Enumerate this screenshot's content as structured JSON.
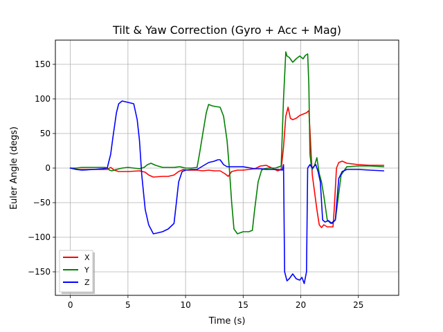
{
  "chart_data": {
    "type": "line",
    "title": "Tilt & Yaw Correction (Gyro + Acc + Mag)",
    "xlabel": "Time (s)",
    "ylabel": "Euler Angle (degs)",
    "xlim": [
      -1.3,
      28.5
    ],
    "ylim": [
      -184,
      185
    ],
    "xticks": [
      0,
      5,
      10,
      15,
      20,
      25
    ],
    "yticks": [
      -150,
      -100,
      -50,
      0,
      50,
      100,
      150
    ],
    "grid": true,
    "legend_position": "lower-left",
    "series": [
      {
        "name": "X",
        "color": "#ff0000",
        "x": [
          0,
          0.7,
          2.5,
          3.2,
          3.5,
          3.8,
          4.2,
          5.0,
          6.0,
          6.5,
          6.8,
          7.2,
          8.0,
          8.5,
          9.0,
          9.4,
          9.8,
          10.2,
          11.0,
          11.5,
          12.0,
          12.5,
          13.0,
          13.4,
          13.7,
          14.0,
          14.5,
          15.0,
          15.5,
          16.0,
          16.5,
          17.0,
          17.5,
          18.0,
          18.3,
          18.5,
          18.7,
          18.9,
          19.1,
          19.3,
          19.6,
          19.9,
          20.2,
          20.5,
          20.7,
          20.8,
          20.9,
          21.0,
          21.2,
          21.4,
          21.6,
          21.8,
          22.0,
          22.3,
          22.6,
          22.8,
          22.9,
          23.1,
          23.3,
          23.6,
          24.0,
          24.5,
          25.0,
          26.0,
          27.2
        ],
        "values": [
          0,
          -2,
          -2,
          -2,
          1,
          -3,
          -5,
          -5,
          -4,
          -6,
          -10,
          -13,
          -12,
          -12,
          -10,
          -5,
          -2,
          -3,
          -3,
          -4,
          -3,
          -4,
          -4,
          -8,
          -12,
          -5,
          -3,
          -3,
          -2,
          -1,
          3,
          4,
          0,
          -4,
          -2,
          30,
          75,
          88,
          72,
          70,
          72,
          76,
          78,
          80,
          83,
          55,
          20,
          -10,
          -35,
          -60,
          -82,
          -86,
          -82,
          -85,
          -85,
          -85,
          -60,
          0,
          8,
          10,
          7,
          6,
          5,
          4,
          4
        ]
      },
      {
        "name": "Y",
        "color": "#008000",
        "x": [
          0,
          0.5,
          1.0,
          2.5,
          3.0,
          3.2,
          3.4,
          3.6,
          4.0,
          4.5,
          5.0,
          5.5,
          6.0,
          6.4,
          6.7,
          7.0,
          7.4,
          8.0,
          9.0,
          9.5,
          10.0,
          10.5,
          11.0,
          11.2,
          11.5,
          11.8,
          12.0,
          12.3,
          12.6,
          13.0,
          13.3,
          13.6,
          13.8,
          14.0,
          14.2,
          14.5,
          15.0,
          15.5,
          15.8,
          16.0,
          16.3,
          16.6,
          16.8,
          17.2,
          17.8,
          18.3,
          18.5,
          18.7,
          18.8,
          19.0,
          19.3,
          19.6,
          19.9,
          20.2,
          20.4,
          20.6,
          20.7,
          20.8,
          20.9,
          21.0,
          21.2,
          21.4,
          21.6,
          21.8,
          22.0,
          22.3,
          22.6,
          23.0,
          23.5,
          24.0,
          25.0,
          26.0,
          27.2
        ],
        "values": [
          0,
          0,
          1,
          1,
          1,
          0,
          -3,
          -4,
          -2,
          0,
          1,
          0,
          -1,
          1,
          5,
          7,
          4,
          1,
          1,
          2,
          0,
          0,
          1,
          20,
          50,
          80,
          92,
          90,
          89,
          88,
          75,
          40,
          0,
          -50,
          -88,
          -95,
          -92,
          -92,
          -90,
          -60,
          -20,
          -3,
          -1,
          0,
          0,
          3,
          100,
          168,
          162,
          160,
          153,
          158,
          162,
          158,
          163,
          165,
          120,
          20,
          5,
          -2,
          4,
          15,
          -8,
          -20,
          -40,
          -75,
          -80,
          -75,
          -10,
          2,
          3,
          3,
          2
        ]
      },
      {
        "name": "Z",
        "color": "#0000ff",
        "x": [
          0,
          0.5,
          1.0,
          2.0,
          2.8,
          3.2,
          3.5,
          3.7,
          4.0,
          4.2,
          4.5,
          5.0,
          5.5,
          5.8,
          6.0,
          6.2,
          6.5,
          6.8,
          7.2,
          7.5,
          8.0,
          8.5,
          9.0,
          9.2,
          9.4,
          9.7,
          10.0,
          10.5,
          11.0,
          11.5,
          12.0,
          12.5,
          12.8,
          13.0,
          13.3,
          13.6,
          14.0,
          15.0,
          16.0,
          16.5,
          17.0,
          18.0,
          18.4,
          18.5,
          18.6,
          18.8,
          19.0,
          19.3,
          19.6,
          19.9,
          20.1,
          20.3,
          20.5,
          20.6,
          20.8,
          21.0,
          21.3,
          21.5,
          21.7,
          21.9,
          22.1,
          22.4,
          22.7,
          23.0,
          23.3,
          23.6,
          24.0,
          25.0,
          26.0,
          27.2
        ],
        "values": [
          0,
          -2,
          -3,
          -2,
          -1,
          0,
          20,
          45,
          80,
          93,
          97,
          95,
          93,
          70,
          40,
          -10,
          -60,
          -82,
          -95,
          -94,
          -92,
          -88,
          -80,
          -50,
          -20,
          -5,
          -3,
          -2,
          -2,
          3,
          8,
          10,
          12,
          12,
          5,
          2,
          2,
          2,
          -1,
          -1,
          -2,
          -2,
          -3,
          5,
          -150,
          -163,
          -160,
          -153,
          -160,
          -162,
          -158,
          -167,
          -150,
          0,
          5,
          0,
          5,
          -5,
          -20,
          -75,
          -78,
          -76,
          -80,
          -75,
          -15,
          -5,
          -2,
          -2,
          -3,
          -4
        ]
      }
    ]
  }
}
